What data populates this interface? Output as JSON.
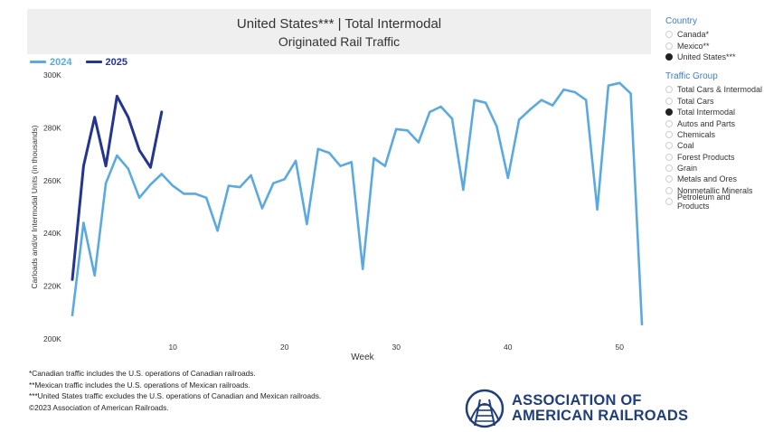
{
  "header": {
    "title_line1": "United States*** | Total Intermodal",
    "title_line2": "Originated Rail Traffic"
  },
  "colors": {
    "series_2024": "#5aaae0",
    "series_2025": "#23358f",
    "filter_heading": "#3d7fc4",
    "logo": "#1f3f7a"
  },
  "filters": {
    "country": {
      "heading": "Country",
      "options": [
        "Canada*",
        "Mexico**",
        "United States***"
      ],
      "selected": "United States***"
    },
    "traffic_group": {
      "heading": "Traffic Group",
      "options": [
        "Total Cars & Intermodal",
        "Total Cars",
        "Total Intermodal",
        "Autos and Parts",
        "Chemicals",
        "Coal",
        "Forest Products",
        "Grain",
        "Metals and Ores",
        "Nonmetallic Minerals",
        "Petroleum and Products"
      ],
      "selected": "Total Intermodal"
    }
  },
  "footnotes": [
    "*Canadian traffic includes the U.S. operations of Canadian railroads.",
    "**Mexican traffic includes the U.S. operations of Mexican railroads.",
    "***United States traffic excludes the U.S. operations of Canadian and Mexican railroads.",
    "©2023 Association of American Railroads."
  ],
  "logo": {
    "line1": "ASSOCIATION OF",
    "line2": "AMERICAN RAILROADS",
    "icon": "railroad-track-arch-icon"
  },
  "chart_data": {
    "type": "line",
    "title": "United States*** | Total Intermodal Originated Rail Traffic",
    "xlabel": "Week",
    "ylabel": "Carloads and/or Intermodal Units (in thousands)",
    "xlim": [
      1,
      52
    ],
    "ylim": [
      200,
      300
    ],
    "x_ticks": [
      10,
      20,
      30,
      40,
      50
    ],
    "y_ticks": [
      200,
      220,
      240,
      260,
      280,
      300
    ],
    "y_tick_labels": [
      "200K",
      "220K",
      "240K",
      "260K",
      "280K",
      "300K"
    ],
    "legend_position": "top-left",
    "grid": false,
    "series": [
      {
        "name": "2024",
        "x": [
          1,
          2,
          3,
          4,
          5,
          6,
          7,
          8,
          9,
          10,
          11,
          12,
          13,
          14,
          15,
          16,
          17,
          18,
          19,
          20,
          21,
          22,
          23,
          24,
          25,
          26,
          27,
          28,
          29,
          30,
          31,
          32,
          33,
          34,
          35,
          36,
          37,
          38,
          39,
          40,
          41,
          42,
          43,
          44,
          45,
          46,
          47,
          48,
          49,
          50,
          51,
          52
        ],
        "values": [
          209,
          244,
          224,
          259,
          269.5,
          264.5,
          253.5,
          258.5,
          262.5,
          258,
          255,
          255,
          253.5,
          241,
          258,
          257.5,
          262,
          249.5,
          259,
          260.5,
          267.5,
          243.5,
          272,
          270.5,
          265.5,
          267,
          226.5,
          268.5,
          265.5,
          279.5,
          279,
          274.5,
          286,
          288,
          283.5,
          256.5,
          290.5,
          289.5,
          280.5,
          261,
          283,
          287,
          290.5,
          288.5,
          294.5,
          293.5,
          290.5,
          249,
          296,
          297,
          293,
          205.5
        ]
      },
      {
        "name": "2025",
        "x": [
          1,
          2,
          3,
          4,
          5,
          6,
          7,
          8,
          9
        ],
        "values": [
          222.5,
          265.5,
          284,
          265.5,
          292,
          284,
          271.5,
          265,
          286
        ]
      }
    ]
  }
}
